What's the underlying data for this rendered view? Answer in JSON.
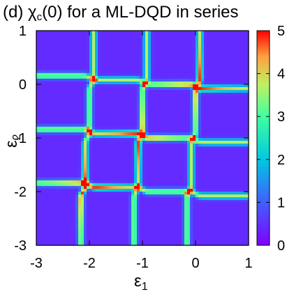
{
  "chart_data": {
    "type": "heatmap",
    "title": "(d) χ",
    "title_sub": "c",
    "title_rest": "(0) for a ML-DQD in series",
    "xlabel": "ε",
    "xlabel_sub": "1",
    "ylabel": "ε",
    "ylabel_sub": "2",
    "xlim": [
      -3,
      1
    ],
    "ylim": [
      -3,
      1
    ],
    "x_ticks": [
      -3,
      -2,
      -1,
      0,
      1
    ],
    "x_tick_labels": [
      "-3",
      "-2",
      "-1",
      "0",
      "1"
    ],
    "y_ticks": [
      1,
      0,
      -1,
      -2,
      -3
    ],
    "y_tick_labels": [
      "1",
      "0",
      "-1",
      "-2",
      "-3"
    ],
    "colorbar": {
      "range": [
        0,
        5
      ],
      "ticks": [
        5,
        4,
        3,
        2,
        1,
        0
      ],
      "tick_labels": [
        "5",
        "4",
        "3",
        "2",
        "1",
        "0"
      ],
      "palette": "rainbow"
    },
    "features": {
      "vertical_ridges_at_eps1": [
        -2,
        -1,
        0
      ],
      "horizontal_ridges_at_eps2": [
        0,
        -1,
        -2
      ],
      "description_values": "anticrossing ridges of high susceptibility near integer ε1 and ε2 values; background ≈ 0.5"
    }
  }
}
